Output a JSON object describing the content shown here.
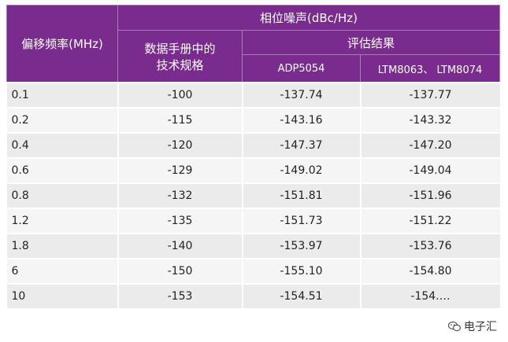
{
  "table": {
    "header": {
      "col1": "偏移频率(MHz)",
      "group": "相位噪声(dBc/Hz)",
      "col2": [
        "数据手册中的",
        "技术规格"
      ],
      "eval_group": "评估结果",
      "col3": "ADP5054",
      "col4": "LTM8063、 LTM8074"
    },
    "rows": [
      [
        "0.1",
        "-100",
        "-137.74",
        "-137.77"
      ],
      [
        "0.2",
        "-115",
        "-143.16",
        "-143.32"
      ],
      [
        "0.4",
        "-120",
        "-147.37",
        "-147.20"
      ],
      [
        "0.6",
        "-129",
        "-149.02",
        "-149.04"
      ],
      [
        "0.8",
        "-132",
        "-151.81",
        "-151.96"
      ],
      [
        "1.2",
        "-135",
        "-151.73",
        "-151.22"
      ],
      [
        "1.8",
        "-140",
        "-153.97",
        "-153.76"
      ],
      [
        "6",
        "-150",
        "-155.10",
        "-154.80"
      ],
      [
        "10",
        "-153",
        "-154.51",
        "-154.…"
      ]
    ]
  },
  "watermark": {
    "text": "电子汇",
    "icon": "wechat-icon"
  }
}
